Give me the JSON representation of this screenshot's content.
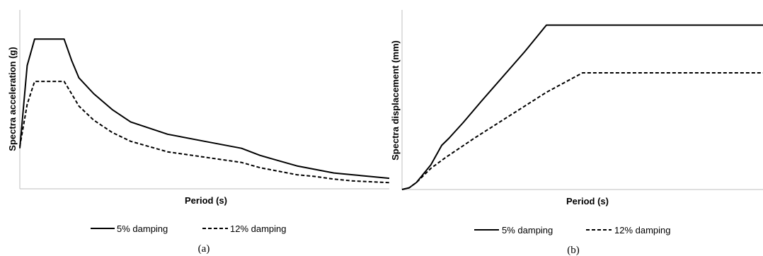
{
  "chart_data": [
    {
      "type": "line",
      "caption": "(a)",
      "xlabel": "Period (s)",
      "ylabel": "Spectra acceleration (g)",
      "xlim": [
        0,
        100
      ],
      "ylim": [
        0,
        100
      ],
      "grid": false,
      "legend": "bottom",
      "series": [
        {
          "name": "5% damping",
          "style": "solid",
          "x": [
            0,
            2,
            4,
            12,
            14,
            16,
            20,
            25,
            30,
            40,
            50,
            60,
            65,
            70,
            75,
            80,
            85,
            90,
            95,
            100
          ],
          "y": [
            23,
            70,
            85,
            85,
            73,
            63,
            54,
            45,
            38,
            31,
            27,
            23,
            19,
            16,
            13,
            11,
            9,
            8,
            7,
            6
          ]
        },
        {
          "name": "12% damping",
          "style": "dashed",
          "x": [
            0,
            2,
            4,
            12,
            14,
            16,
            20,
            25,
            30,
            40,
            50,
            60,
            65,
            70,
            75,
            80,
            85,
            90,
            95,
            100
          ],
          "y": [
            24,
            48,
            61,
            61,
            54,
            47,
            39,
            32,
            27,
            21,
            18,
            15,
            12,
            10,
            8,
            7,
            5.5,
            4.5,
            4,
            3.5
          ]
        }
      ]
    },
    {
      "type": "line",
      "caption": "(b)",
      "xlabel": "Period (s)",
      "ylabel": "Spectra displacement (mm)",
      "xlim": [
        0,
        100
      ],
      "ylim": [
        0,
        100
      ],
      "grid": false,
      "legend": "bottom",
      "series": [
        {
          "name": "5% damping",
          "style": "solid",
          "x": [
            0,
            2,
            4,
            8,
            11,
            13,
            17,
            22,
            28,
            34,
            40,
            50,
            100
          ],
          "y": [
            0,
            1,
            4,
            14,
            25,
            29,
            38,
            50,
            64,
            78,
            93,
            93,
            93
          ],
          "note_x_end": 100
        },
        {
          "name": "12% damping",
          "style": "dashed",
          "x": [
            0,
            2,
            4,
            8,
            12,
            20,
            30,
            40,
            50,
            100
          ],
          "y": [
            0,
            1,
            4,
            12,
            18,
            29,
            42,
            55,
            66,
            66
          ]
        }
      ]
    }
  ]
}
